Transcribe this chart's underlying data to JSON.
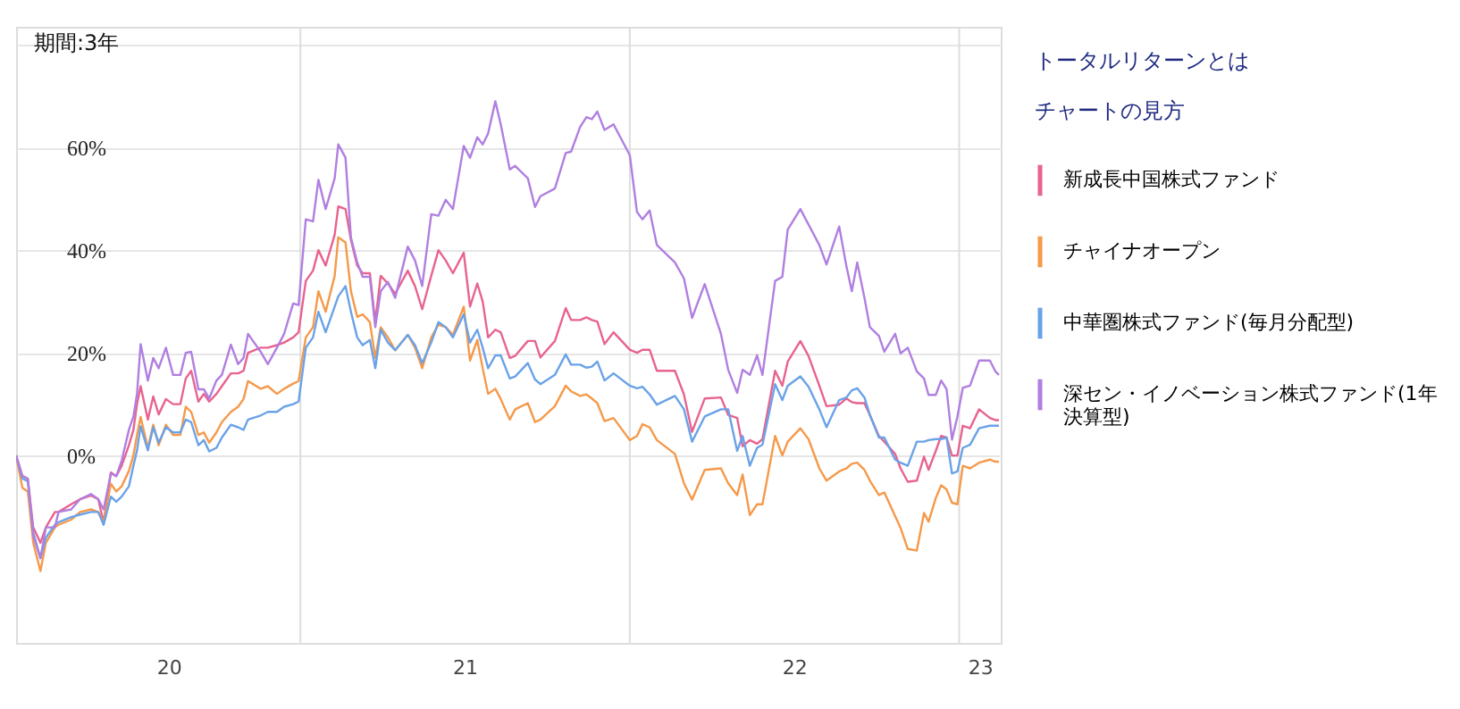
{
  "chart_data": {
    "type": "line",
    "annotations": [
      "期間:3年",
      "トータルリターンとは",
      "チャートの見方"
    ],
    "x": [
      "2020-02-21",
      "2020-02-28",
      "2020-03-05",
      "2020-03-11",
      "2020-03-19",
      "2020-03-25",
      "2020-04-04",
      "2020-04-08",
      "2020-04-22",
      "2020-05-02",
      "2020-05-14",
      "2020-05-22",
      "2020-05-28",
      "2020-06-05",
      "2020-06-11",
      "2020-06-17",
      "2020-06-25",
      "2020-06-30",
      "2020-07-04",
      "2020-07-08",
      "2020-07-16",
      "2020-07-22",
      "2020-07-28",
      "2020-08-05",
      "2020-08-13",
      "2020-08-21",
      "2020-08-27",
      "2020-09-02",
      "2020-09-10",
      "2020-09-16",
      "2020-09-22",
      "2020-09-30",
      "2020-10-06",
      "2020-10-16",
      "2020-10-24",
      "2020-10-30",
      "2020-11-04",
      "2020-11-18",
      "2020-11-26",
      "2020-12-06",
      "2020-12-14",
      "2020-12-24",
      "2020-12-30",
      "2021-01-07",
      "2021-01-15",
      "2021-01-21",
      "2021-01-29",
      "2021-02-08",
      "2021-02-12",
      "2021-02-20",
      "2021-02-26",
      "2021-03-05",
      "2021-03-11",
      "2021-03-19",
      "2021-03-25",
      "2021-03-31",
      "2021-04-08",
      "2021-04-16",
      "2021-04-30",
      "2021-05-08",
      "2021-05-16",
      "2021-05-26",
      "2021-06-03",
      "2021-06-11",
      "2021-06-19",
      "2021-07-01",
      "2021-07-08",
      "2021-07-16",
      "2021-07-22",
      "2021-07-28",
      "2021-08-05",
      "2021-08-11",
      "2021-08-21",
      "2021-08-27",
      "2021-09-10",
      "2021-09-18",
      "2021-09-24",
      "2021-10-10",
      "2021-10-22",
      "2021-10-28",
      "2021-11-07",
      "2021-11-14",
      "2021-11-20",
      "2021-11-26",
      "2021-12-04",
      "2021-12-14",
      "2022-01-01",
      "2022-01-09",
      "2022-01-15",
      "2022-01-23",
      "2022-01-31",
      "2022-02-20",
      "2022-03-02",
      "2022-03-11",
      "2022-03-25",
      "2022-04-12",
      "2022-04-20",
      "2022-04-30",
      "2022-05-06",
      "2022-05-14",
      "2022-05-22",
      "2022-05-28",
      "2022-06-11",
      "2022-06-19",
      "2022-06-25",
      "2022-07-09",
      "2022-07-18",
      "2022-07-30",
      "2022-08-07",
      "2022-08-21",
      "2022-08-29",
      "2022-09-04",
      "2022-09-10",
      "2022-09-18",
      "2022-09-24",
      "2022-10-04",
      "2022-10-10",
      "2022-10-22",
      "2022-10-28",
      "2022-11-05",
      "2022-11-15",
      "2022-11-23",
      "2022-11-28",
      "2022-12-06",
      "2022-12-12",
      "2022-12-18",
      "2022-12-24",
      "2022-12-30",
      "2023-01-05",
      "2023-01-13",
      "2023-01-23",
      "2023-02-04",
      "2023-02-10",
      "2023-02-14"
    ],
    "series": [
      {
        "name": "新成長中国株式ファンド",
        "color": "#e8638f",
        "values": [
          0,
          -4,
          -4.5,
          -14,
          -17,
          -14,
          -11,
          -11,
          -9.5,
          -8.5,
          -7.8,
          -8.5,
          -13,
          -3.3,
          -4,
          -2,
          2,
          5,
          10,
          13.5,
          7,
          11.5,
          8,
          11,
          10,
          10,
          15,
          16.5,
          10.5,
          12,
          10.5,
          12,
          13.5,
          16,
          16,
          16.5,
          20,
          21,
          21,
          21.5,
          22,
          23,
          24,
          34,
          36,
          40,
          37,
          43,
          48.5,
          48,
          42,
          37,
          35.5,
          35.5,
          26,
          35,
          33.5,
          31.5,
          36,
          33,
          28.5,
          35,
          40,
          38,
          35.5,
          39.5,
          29,
          33.5,
          30,
          23,
          24.5,
          24,
          19,
          19.4,
          22.3,
          22.3,
          19.1,
          22.3,
          28.7,
          26.4,
          26.4,
          26.9,
          26.4,
          26.1,
          21.7,
          24,
          20.6,
          20,
          20.6,
          20.6,
          16.5,
          16.5,
          11.9,
          4.6,
          11.1,
          11.3,
          7.9,
          7.3,
          1.8,
          3,
          2.3,
          3.2,
          16.5,
          13.6,
          18.3,
          22.3,
          19.4,
          13.6,
          9.6,
          9.9,
          11.1,
          10.4,
          10.2,
          10.2,
          7.9,
          3.8,
          2.7,
          0.3,
          -2.5,
          -5.1,
          -4.9,
          -0.2,
          -2.8,
          0.9,
          3.8,
          3.5,
          0,
          0,
          5.8,
          5.3,
          9,
          7.3,
          6.9,
          6.9
        ]
      },
      {
        "name": "チャイナオープン",
        "color": "#f5994a",
        "values": [
          0,
          -6.3,
          -7,
          -17,
          -22.5,
          -17,
          -14,
          -13.5,
          -12.5,
          -11,
          -10.5,
          -11,
          -13,
          -5.5,
          -7,
          -6,
          -3,
          0,
          4,
          7.5,
          1.5,
          6,
          2,
          6,
          4,
          4,
          9.5,
          8.5,
          4,
          4.5,
          2.5,
          4.5,
          6.5,
          8.5,
          9.5,
          11,
          14.5,
          13,
          13.5,
          12,
          13,
          14,
          14.5,
          23,
          25,
          32,
          28,
          35,
          42.5,
          41.5,
          32,
          27,
          27.5,
          26,
          19,
          25,
          23,
          20.5,
          23.5,
          21,
          17,
          23,
          25.5,
          25,
          23.5,
          29,
          18.5,
          22.5,
          17,
          12,
          13,
          11,
          7,
          9,
          10.2,
          6.5,
          7,
          9.6,
          13.6,
          12.5,
          11.6,
          11.9,
          11.1,
          10.2,
          6.7,
          7.3,
          3,
          3.8,
          6.1,
          5.5,
          3,
          0.3,
          -5.4,
          -8.6,
          -2.8,
          -2.5,
          -5.4,
          -7.7,
          -3.7,
          -11.6,
          -9.5,
          -9.5,
          3.8,
          0,
          2.7,
          5.3,
          3.2,
          -2.5,
          -4.9,
          -3.1,
          -2.5,
          -1.6,
          -1.4,
          -2.8,
          -4.9,
          -7.7,
          -7.2,
          -11.8,
          -14.1,
          -18.2,
          -18.5,
          -11.2,
          -12.9,
          -8.3,
          -5.8,
          -6.6,
          -9.2,
          -9.5,
          -2,
          -2.5,
          -1.4,
          -0.8,
          -1.2,
          -1.2
        ]
      },
      {
        "name": "中華圏株式ファンド(毎月分配型)",
        "color": "#6aa2e8",
        "values": [
          0,
          -4.5,
          -5,
          -15,
          -20,
          -16,
          -13.5,
          -13,
          -12,
          -11.5,
          -11,
          -11,
          -13.5,
          -8,
          -9,
          -8,
          -6,
          -2,
          1,
          5.7,
          1,
          5.5,
          2.5,
          5.5,
          4.5,
          4.5,
          7,
          6.5,
          2,
          3,
          0.8,
          1.5,
          3.5,
          6,
          5.5,
          5,
          7,
          7.8,
          8.5,
          8.5,
          9.5,
          10,
          10.5,
          21,
          23,
          28,
          24,
          29,
          31,
          33,
          28,
          23,
          21.5,
          22.5,
          17,
          24.5,
          22,
          20.5,
          23.5,
          21.5,
          18,
          22,
          26,
          25,
          23,
          27.5,
          22,
          24.5,
          21,
          17,
          19.5,
          19.5,
          15,
          15.4,
          18,
          14.8,
          13.9,
          15.7,
          19.7,
          17.7,
          17.7,
          17.1,
          17.3,
          18.3,
          14.6,
          16,
          13.6,
          13.1,
          13.4,
          11.9,
          9.9,
          11.6,
          9,
          2.7,
          7.6,
          9,
          9,
          0.9,
          3.8,
          -2,
          1.5,
          2.1,
          13.9,
          10.8,
          13.6,
          15.4,
          13.4,
          9,
          5.5,
          10.8,
          11.3,
          12.7,
          13.1,
          11.3,
          7.9,
          3.5,
          3.5,
          -0.8,
          -1.4,
          -2,
          2.7,
          2.7,
          3,
          3.2,
          3.2,
          3.5,
          -3.5,
          -3.1,
          1.5,
          2.1,
          5.3,
          5.8,
          5.8,
          5.8
        ]
      },
      {
        "name": "深セン・イノベーション株式ファンド(1年決算型)",
        "color": "#b07fe0",
        "values": [
          0,
          -4,
          -4.5,
          -15.7,
          -20,
          -14,
          -14,
          -11,
          -10.5,
          -8.5,
          -7.5,
          -8.5,
          -10.5,
          -3.5,
          -4,
          -1,
          5,
          7.6,
          12,
          21.7,
          14.6,
          19,
          17,
          21,
          15.7,
          15.7,
          20,
          20.2,
          12.9,
          12.9,
          11.1,
          14.6,
          15.7,
          21.6,
          17.8,
          19,
          23.7,
          20.2,
          17.8,
          21,
          23.7,
          29.6,
          29.3,
          46,
          45.6,
          53.7,
          48,
          54,
          60.6,
          58,
          42.5,
          37.6,
          34.8,
          34.8,
          25,
          32,
          33.8,
          30.7,
          40.7,
          38,
          33,
          47,
          46.7,
          49.8,
          48,
          60.3,
          58,
          62,
          60.6,
          62.7,
          69,
          64.5,
          55.7,
          56.4,
          54,
          48.4,
          50.5,
          52,
          58.9,
          59.2,
          64,
          65.9,
          65.5,
          67,
          63.4,
          64.5,
          58.5,
          47.4,
          46,
          47.7,
          41,
          37.6,
          34.5,
          26.8,
          33.4,
          23.7,
          16.7,
          12.2,
          16.7,
          15.7,
          19.5,
          15.7,
          34,
          34.8,
          44,
          48,
          45,
          41,
          37.2,
          44.6,
          36.9,
          32,
          37.6,
          30.7,
          25,
          23.3,
          20.2,
          23.7,
          19.9,
          21,
          16.4,
          15,
          11.8,
          11.8,
          14.6,
          12.9,
          3.1,
          7.6,
          13.2,
          13.6,
          18.5,
          18.5,
          16.4,
          15.7
        ]
      }
    ],
    "xlim": [
      "2020-02-21",
      "2023-02-16"
    ],
    "xticks": [
      {
        "value": "2020-08-08",
        "label": "20"
      },
      {
        "value": "2021-01-01",
        "label": null
      },
      {
        "value": "2021-07-02",
        "label": "21"
      },
      {
        "value": "2022-01-01",
        "label": null
      },
      {
        "value": "2022-07-02",
        "label": "22"
      },
      {
        "value": "2023-01-01",
        "label": null
      },
      {
        "value": "2023-01-24",
        "label": "23"
      }
    ],
    "ylim": [
      -36.5,
      83.5
    ],
    "yticks": [
      {
        "value": 0,
        "label": "0%"
      },
      {
        "value": 20,
        "label": "20%"
      },
      {
        "value": 40,
        "label": "40%"
      },
      {
        "value": 60,
        "label": "60%"
      },
      {
        "value": 80,
        "label": null
      }
    ],
    "grid": true,
    "legend": "right",
    "marker": "none",
    "line_style": "solid"
  }
}
